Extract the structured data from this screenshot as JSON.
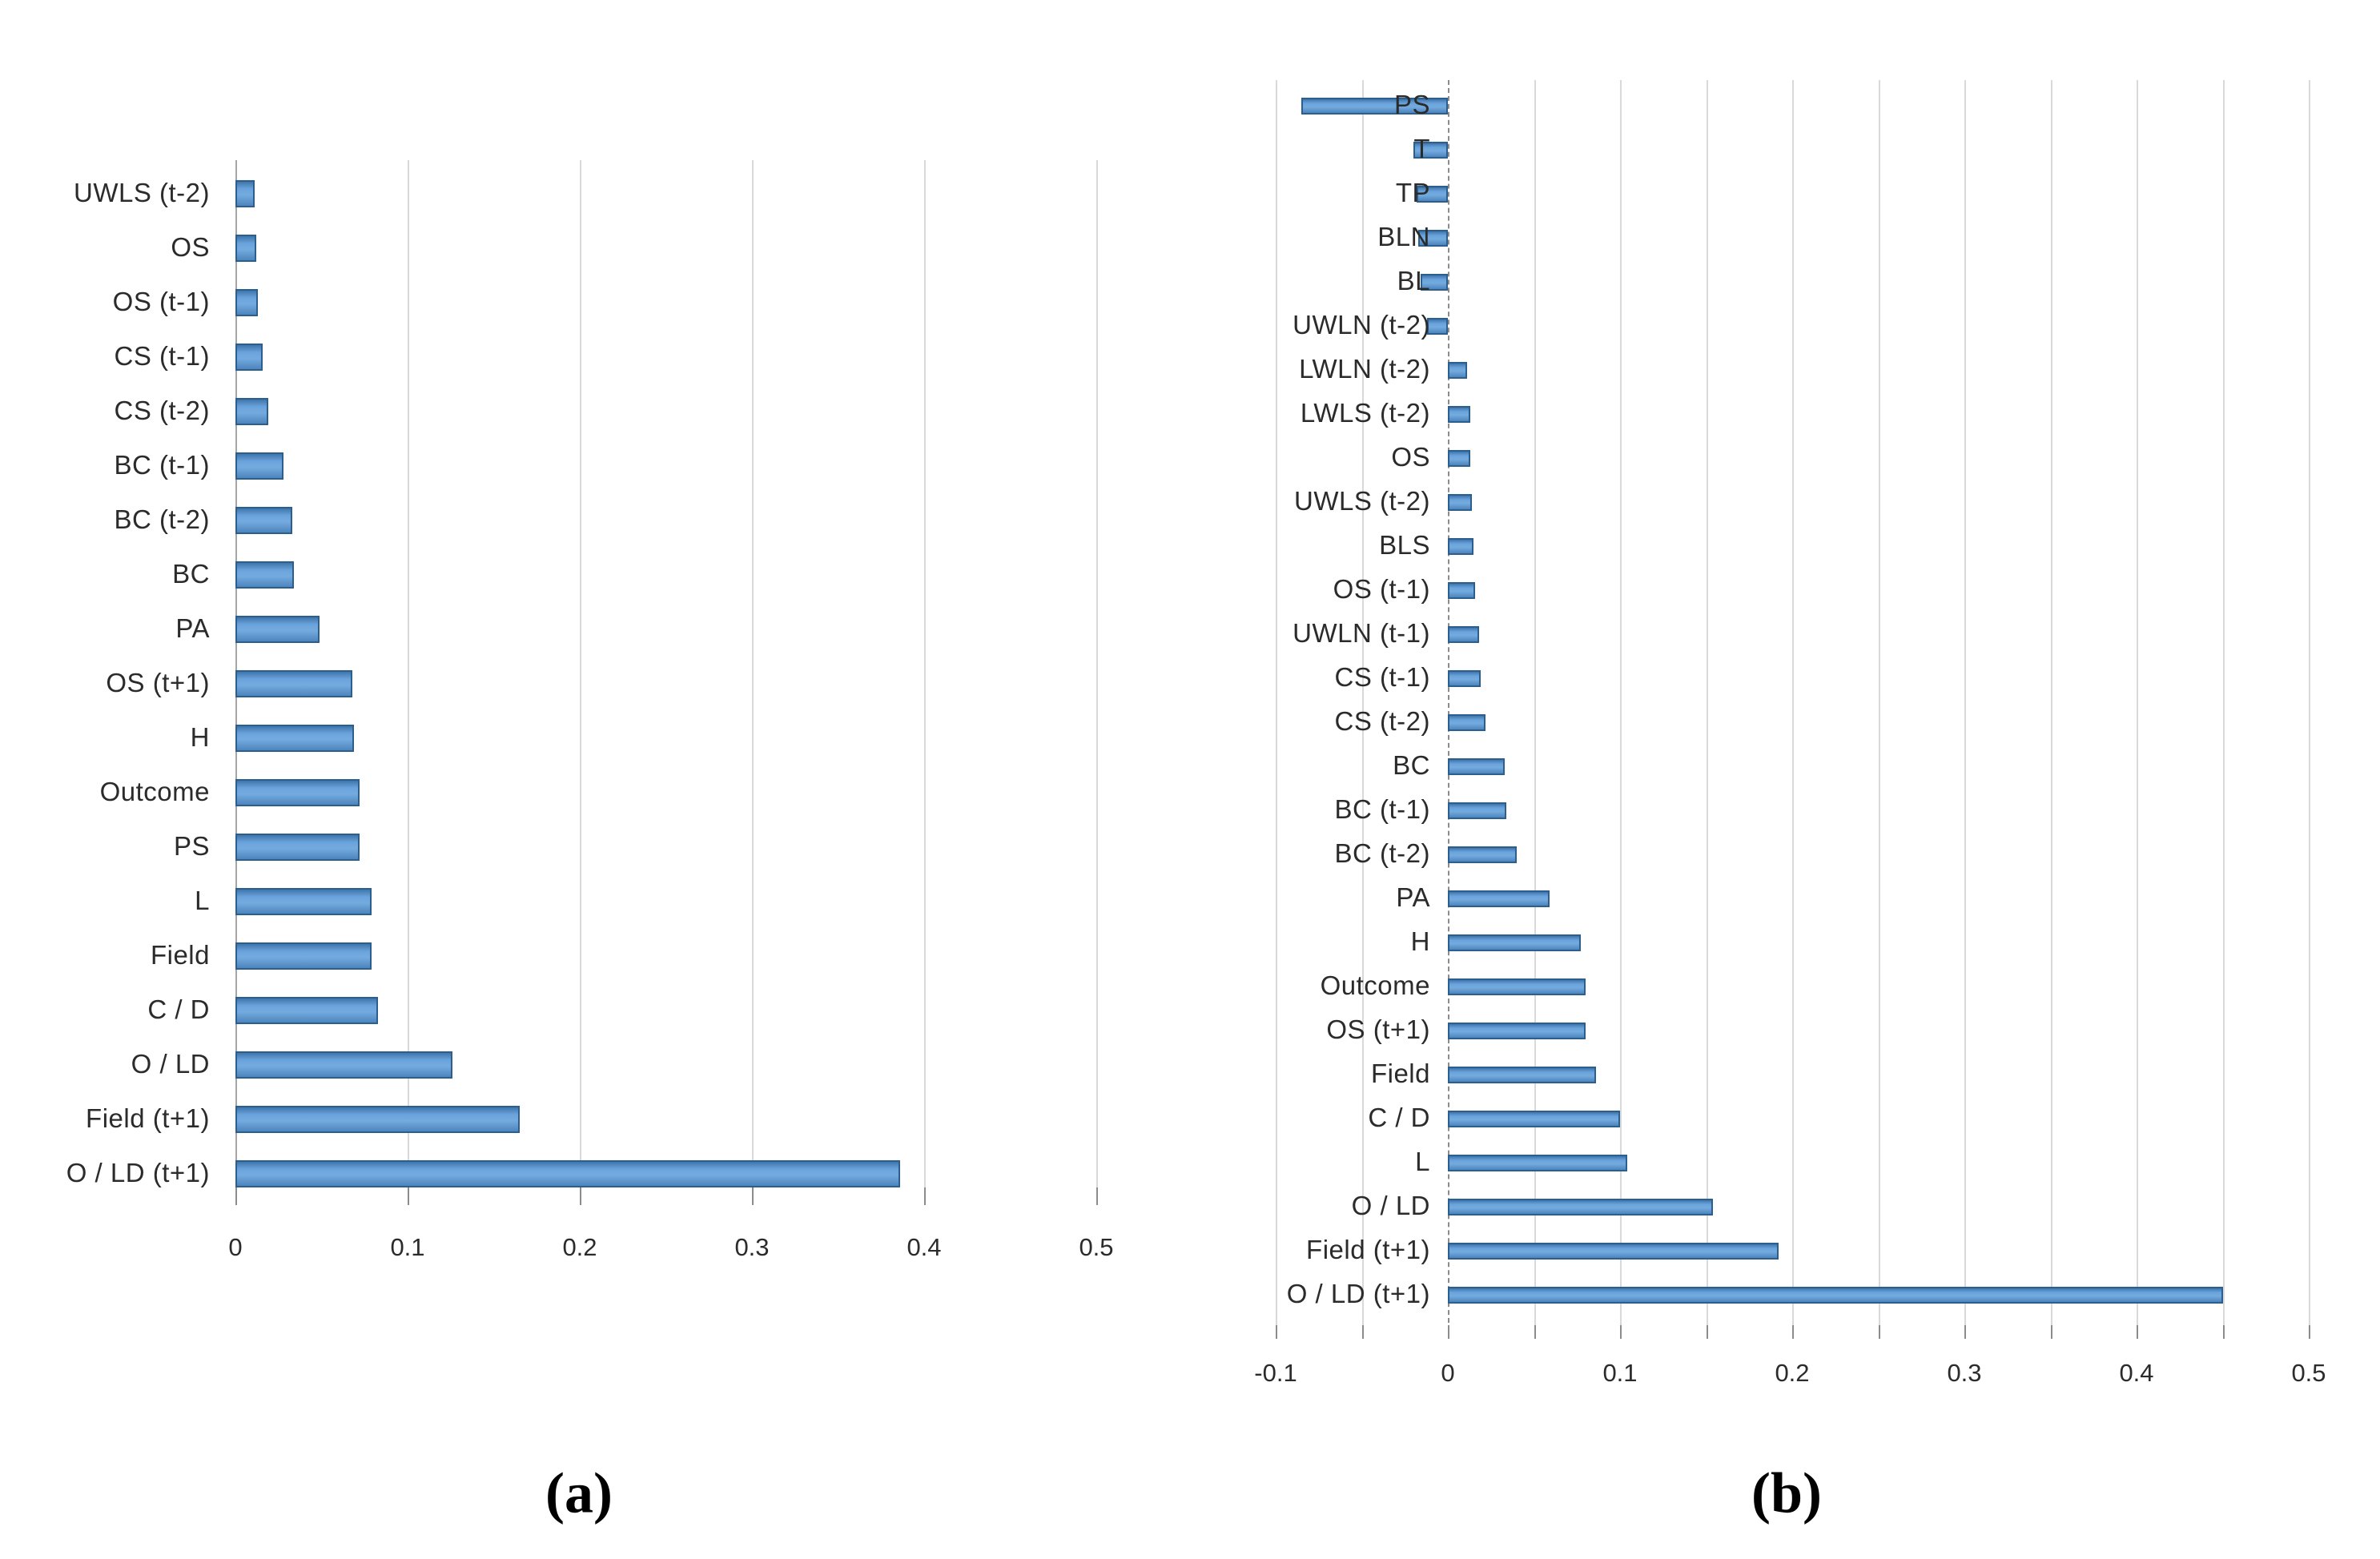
{
  "figure": {
    "panel_a_label": "(a)",
    "panel_b_label": "(b)"
  },
  "colors": {
    "bar_fill": "#5b9bd5",
    "bar_border": "#2d5f8e",
    "gridline": "#d9d9d9",
    "zero_line": "#8c8c8c",
    "text": "#2b2b2b"
  },
  "chart_data": [
    {
      "type": "bar",
      "orientation": "horizontal",
      "panel": "a",
      "title": "",
      "xlabel": "",
      "ylabel": "",
      "grid": true,
      "legend": false,
      "xlim": [
        0,
        0.5
      ],
      "tick_step": 0.1,
      "grid_step": 0.1,
      "tick_labels": [
        "0",
        "0.1",
        "0.2",
        "0.3",
        "0.4",
        "0.5"
      ],
      "categories": [
        "UWLS (t-2)",
        "OS",
        "OS (t-1)",
        "CS (t-1)",
        "CS (t-2)",
        "BC (t-1)",
        "BC (t-2)",
        "BC",
        "PA",
        "OS (t+1)",
        "H",
        "Outcome",
        "PS",
        "L",
        "Field",
        "C / D",
        "O / LD",
        "Field (t+1)",
        "O / LD (t+1)"
      ],
      "values": [
        0.011,
        0.012,
        0.013,
        0.016,
        0.019,
        0.028,
        0.033,
        0.034,
        0.049,
        0.068,
        0.069,
        0.072,
        0.072,
        0.079,
        0.079,
        0.083,
        0.126,
        0.165,
        0.386
      ]
    },
    {
      "type": "bar",
      "orientation": "horizontal",
      "panel": "b",
      "title": "",
      "xlabel": "",
      "ylabel": "",
      "grid": true,
      "legend": false,
      "xlim": [
        -0.1,
        0.5
      ],
      "tick_step": 0.1,
      "grid_step": 0.05,
      "tick_labels": [
        "-0.1",
        "0",
        "0.1",
        "0.2",
        "0.3",
        "0.4",
        "0.5"
      ],
      "categories": [
        "PS",
        "T",
        "TP",
        "BLN",
        "BL",
        "UWLN (t-2)",
        "LWLN (t-2)",
        "LWLS (t-2)",
        "OS",
        "UWLS (t-2)",
        "BLS",
        "OS (t-1)",
        "UWLN (t-1)",
        "CS (t-1)",
        "CS (t-2)",
        "BC",
        "BC (t-1)",
        "BC (t-2)",
        "PA",
        "H",
        "Outcome",
        "OS (t+1)",
        "Field",
        "C / D",
        "L",
        "O / LD",
        "Field (t+1)",
        "O / LD (t+1)"
      ],
      "values": [
        -0.085,
        -0.02,
        -0.018,
        -0.017,
        -0.016,
        -0.012,
        0.011,
        0.013,
        0.013,
        0.014,
        0.015,
        0.016,
        0.018,
        0.019,
        0.022,
        0.033,
        0.034,
        0.04,
        0.059,
        0.077,
        0.08,
        0.08,
        0.086,
        0.1,
        0.104,
        0.154,
        0.192,
        0.45
      ]
    }
  ]
}
